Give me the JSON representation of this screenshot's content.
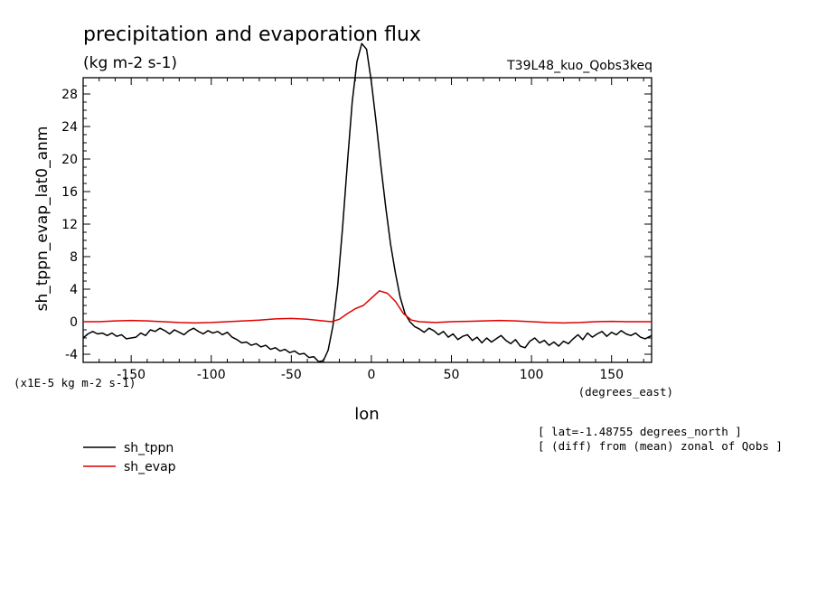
{
  "chart_data": {
    "type": "line",
    "title": "precipitation and evaporation flux",
    "subtitle": "(kg m-2 s-1)",
    "run_label": "T39L48_kuo_Qobs3keq",
    "ylabel": "sh_tppn_evap_lat0_anm",
    "xlabel": "lon",
    "x_units": "(degrees_east)",
    "y_scale_note": "(x1E-5 kg m-2 s-1)",
    "xlim": [
      -180,
      175
    ],
    "ylim": [
      -5,
      30
    ],
    "x_ticks": [
      -150,
      -100,
      -50,
      0,
      50,
      100,
      150
    ],
    "x_tick_labels": [
      "-150",
      "-100",
      "-50",
      "0",
      "50",
      "100",
      "150"
    ],
    "y_ticks": [
      -4,
      0,
      4,
      8,
      12,
      16,
      20,
      24,
      28
    ],
    "y_tick_labels": [
      "-4",
      "0",
      "4",
      "8",
      "12",
      "16",
      "20",
      "24",
      "28"
    ],
    "series": [
      {
        "name": "sh_tppn",
        "color": "#000000",
        "x": [
          -180,
          -177,
          -174,
          -171,
          -168,
          -165,
          -162,
          -159,
          -156,
          -153,
          -150,
          -147,
          -144,
          -141,
          -138,
          -135,
          -132,
          -129,
          -126,
          -123,
          -120,
          -117,
          -114,
          -111,
          -108,
          -105,
          -102,
          -99,
          -96,
          -93,
          -90,
          -87,
          -84,
          -81,
          -78,
          -75,
          -72,
          -69,
          -66,
          -63,
          -60,
          -57,
          -54,
          -51,
          -48,
          -45,
          -42,
          -39,
          -36,
          -33,
          -30,
          -27,
          -24,
          -21,
          -18,
          -15,
          -12,
          -9,
          -6,
          -3,
          0,
          3,
          6,
          9,
          12,
          15,
          18,
          21,
          24,
          27,
          30,
          33,
          36,
          39,
          42,
          45,
          48,
          51,
          54,
          57,
          60,
          63,
          66,
          69,
          72,
          75,
          78,
          81,
          84,
          87,
          90,
          93,
          96,
          99,
          102,
          105,
          108,
          111,
          114,
          117,
          120,
          123,
          126,
          129,
          132,
          135,
          138,
          141,
          144,
          147,
          150,
          153,
          156,
          159,
          162,
          165,
          168,
          171,
          175
        ],
        "values": [
          -2.0,
          -1.5,
          -1.2,
          -1.5,
          -1.4,
          -1.7,
          -1.4,
          -1.8,
          -1.6,
          -2.1,
          -2.0,
          -1.9,
          -1.4,
          -1.7,
          -1.0,
          -1.2,
          -0.8,
          -1.1,
          -1.5,
          -1.0,
          -1.3,
          -1.6,
          -1.1,
          -0.8,
          -1.2,
          -1.5,
          -1.1,
          -1.4,
          -1.2,
          -1.6,
          -1.3,
          -1.9,
          -2.2,
          -2.6,
          -2.5,
          -2.9,
          -2.7,
          -3.1,
          -2.9,
          -3.4,
          -3.2,
          -3.6,
          -3.4,
          -3.8,
          -3.6,
          -4.0,
          -3.9,
          -4.4,
          -4.3,
          -4.9,
          -4.8,
          -3.5,
          -0.5,
          4.5,
          11.5,
          19.5,
          27.0,
          32.0,
          34.2,
          33.5,
          29.5,
          24.5,
          19.0,
          14.0,
          9.5,
          6.0,
          3.0,
          1.0,
          0.0,
          -0.6,
          -0.9,
          -1.3,
          -0.8,
          -1.1,
          -1.6,
          -1.2,
          -1.9,
          -1.5,
          -2.2,
          -1.8,
          -1.6,
          -2.3,
          -1.9,
          -2.6,
          -2.0,
          -2.5,
          -2.1,
          -1.7,
          -2.3,
          -2.7,
          -2.2,
          -3.0,
          -3.2,
          -2.4,
          -2.0,
          -2.6,
          -2.3,
          -2.9,
          -2.5,
          -3.0,
          -2.4,
          -2.7,
          -2.1,
          -1.6,
          -2.2,
          -1.4,
          -1.9,
          -1.5,
          -1.2,
          -1.8,
          -1.3,
          -1.6,
          -1.1,
          -1.5,
          -1.7,
          -1.4,
          -1.9,
          -2.1,
          -1.7
        ]
      },
      {
        "name": "sh_evap",
        "color": "#e00000",
        "x": [
          -180,
          -170,
          -160,
          -150,
          -140,
          -130,
          -120,
          -110,
          -100,
          -90,
          -80,
          -70,
          -60,
          -50,
          -40,
          -30,
          -25,
          -20,
          -15,
          -10,
          -5,
          0,
          5,
          10,
          15,
          20,
          25,
          30,
          40,
          50,
          60,
          70,
          80,
          90,
          100,
          110,
          120,
          130,
          140,
          150,
          160,
          175
        ],
        "values": [
          0.0,
          0.0,
          0.1,
          0.15,
          0.1,
          0.0,
          -0.1,
          -0.15,
          -0.1,
          0.0,
          0.1,
          0.2,
          0.35,
          0.4,
          0.3,
          0.1,
          0.0,
          0.3,
          1.0,
          1.6,
          2.0,
          2.9,
          3.8,
          3.5,
          2.5,
          1.0,
          0.2,
          0.0,
          -0.1,
          0.0,
          0.05,
          0.1,
          0.15,
          0.1,
          0.0,
          -0.1,
          -0.15,
          -0.1,
          0.0,
          0.05,
          0.0,
          0.0
        ]
      }
    ],
    "legend_position": "bottom-left",
    "annotations": [
      "[ lat=-1.48755 degrees_north ]",
      "[ (diff) from (mean) zonal of Qobs ]"
    ]
  }
}
